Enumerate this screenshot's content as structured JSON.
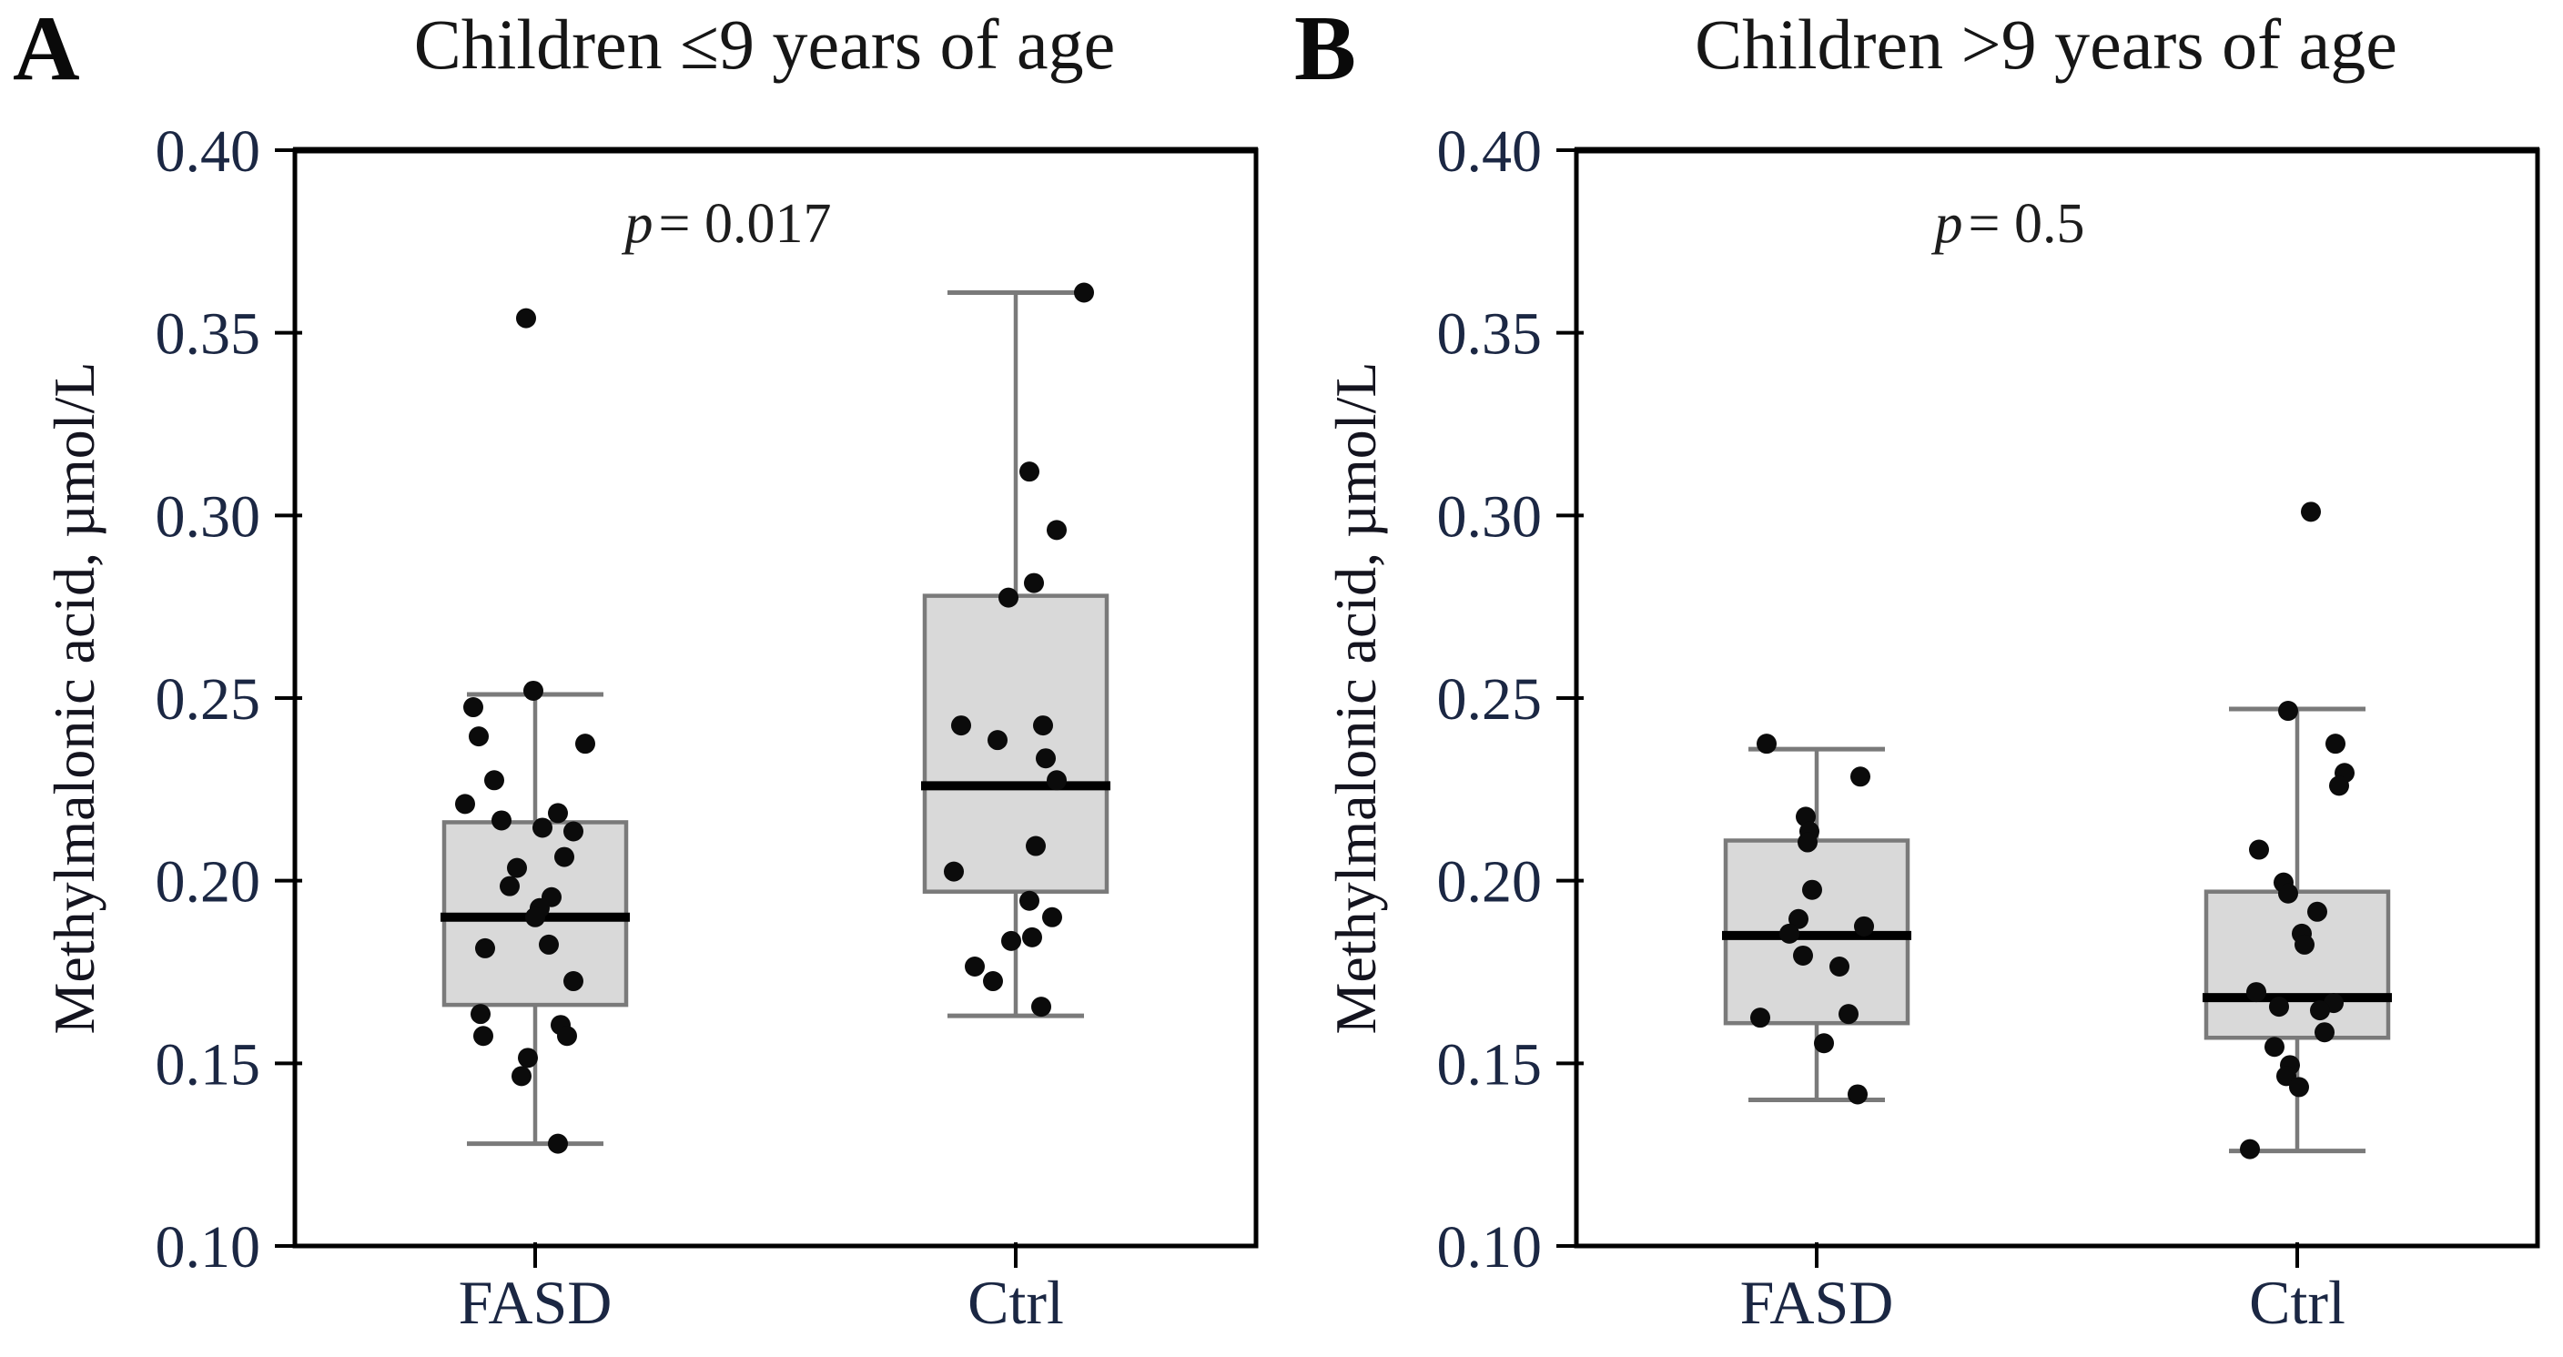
{
  "colors": {
    "background": "#ffffff",
    "plot_border": "#000000",
    "box_fill": "#d9d9d9",
    "box_stroke": "#7a7a7a",
    "whisker": "#7a7a7a",
    "median": "#000000",
    "point": "#0b0b0b",
    "tick_label": "#1b2743",
    "category_label": "#1b2743"
  },
  "chart_data": [
    {
      "type": "box",
      "panel_label": "A",
      "title": "Children ≤9 years of age",
      "p_symbol": "p",
      "p_rest": "= 0.017",
      "ylabel": "Methylmalonic acid, µmol/L",
      "ylim": [
        0.1,
        0.4
      ],
      "yticks": [
        "0.40",
        "0.35",
        "0.30",
        "0.25",
        "0.20",
        "0.15",
        "0.10"
      ],
      "categories": [
        "FASD",
        "Ctrl"
      ],
      "legend": "none",
      "grid": false,
      "groups": [
        {
          "category": "FASD",
          "whisker_low": 0.128,
          "q1": 0.166,
          "median": 0.19,
          "q3": 0.216,
          "whisker_high": 0.251,
          "outliers": [
            0.354
          ],
          "points": [
            [
              -10,
              0.354
            ],
            [
              -2,
              0.252
            ],
            [
              -68,
              0.2475
            ],
            [
              -62,
              0.2395
            ],
            [
              55,
              0.2375
            ],
            [
              -45,
              0.2275
            ],
            [
              -77,
              0.221
            ],
            [
              -37,
              0.2165
            ],
            [
              25,
              0.2185
            ],
            [
              42,
              0.2135
            ],
            [
              8,
              0.2145
            ],
            [
              32,
              0.2065
            ],
            [
              -20,
              0.2035
            ],
            [
              -28,
              0.1985
            ],
            [
              18,
              0.1955
            ],
            [
              5,
              0.1925
            ],
            [
              0,
              0.19
            ],
            [
              15,
              0.1825
            ],
            [
              -55,
              0.1815
            ],
            [
              42,
              0.1725
            ],
            [
              -60,
              0.1635
            ],
            [
              28,
              0.1605
            ],
            [
              -57,
              0.1575
            ],
            [
              35,
              0.1575
            ],
            [
              -8,
              0.1515
            ],
            [
              -15,
              0.1465
            ],
            [
              25,
              0.128
            ]
          ]
        },
        {
          "category": "Ctrl",
          "whisker_low": 0.163,
          "q1": 0.197,
          "median": 0.226,
          "q3": 0.278,
          "whisker_high": 0.361,
          "outliers": [],
          "points": [
            [
              75,
              0.361
            ],
            [
              15,
              0.312
            ],
            [
              45,
              0.296
            ],
            [
              20,
              0.2815
            ],
            [
              -8,
              0.2775
            ],
            [
              -60,
              0.2425
            ],
            [
              30,
              0.2425
            ],
            [
              -20,
              0.2385
            ],
            [
              33,
              0.2335
            ],
            [
              45,
              0.2275
            ],
            [
              22,
              0.2095
            ],
            [
              -68,
              0.2025
            ],
            [
              15,
              0.1945
            ],
            [
              40,
              0.19
            ],
            [
              18,
              0.1845
            ],
            [
              -5,
              0.1835
            ],
            [
              -45,
              0.1765
            ],
            [
              -25,
              0.1725
            ],
            [
              28,
              0.1655
            ]
          ]
        }
      ]
    },
    {
      "type": "box",
      "panel_label": "B",
      "title": "Children >9 years of age",
      "p_symbol": "p",
      "p_rest": "= 0.5",
      "ylabel": "Methylmalonic acid, µmol/L",
      "ylim": [
        0.1,
        0.4
      ],
      "yticks": [
        "0.40",
        "0.35",
        "0.30",
        "0.25",
        "0.20",
        "0.15",
        "0.10"
      ],
      "categories": [
        "FASD",
        "Ctrl"
      ],
      "legend": "none",
      "grid": false,
      "groups": [
        {
          "category": "FASD",
          "whisker_low": 0.14,
          "q1": 0.161,
          "median": 0.185,
          "q3": 0.211,
          "whisker_high": 0.236,
          "outliers": [],
          "points": [
            [
              -55,
              0.2375
            ],
            [
              48,
              0.2285
            ],
            [
              -12,
              0.2175
            ],
            [
              -8,
              0.2135
            ],
            [
              -10,
              0.2105
            ],
            [
              -5,
              0.1975
            ],
            [
              -20,
              0.1895
            ],
            [
              52,
              0.1875
            ],
            [
              -30,
              0.1855
            ],
            [
              -15,
              0.1795
            ],
            [
              25,
              0.1765
            ],
            [
              35,
              0.1635
            ],
            [
              -62,
              0.1625
            ],
            [
              8,
              0.1555
            ],
            [
              45,
              0.1415
            ]
          ]
        },
        {
          "category": "Ctrl",
          "whisker_low": 0.126,
          "q1": 0.157,
          "median": 0.168,
          "q3": 0.197,
          "whisker_high": 0.247,
          "outliers": [
            0.301
          ],
          "points": [
            [
              15,
              0.301
            ],
            [
              -10,
              0.2465
            ],
            [
              42,
              0.2375
            ],
            [
              52,
              0.2295
            ],
            [
              46,
              0.226
            ],
            [
              -42,
              0.2085
            ],
            [
              -15,
              0.1995
            ],
            [
              -10,
              0.1965
            ],
            [
              22,
              0.1915
            ],
            [
              5,
              0.1855
            ],
            [
              8,
              0.1825
            ],
            [
              -45,
              0.1695
            ],
            [
              40,
              0.1665
            ],
            [
              -20,
              0.1655
            ],
            [
              25,
              0.1645
            ],
            [
              30,
              0.1585
            ],
            [
              -25,
              0.1545
            ],
            [
              -8,
              0.1495
            ],
            [
              -12,
              0.1465
            ],
            [
              2,
              0.1435
            ],
            [
              -52,
              0.1265
            ]
          ]
        }
      ]
    }
  ]
}
